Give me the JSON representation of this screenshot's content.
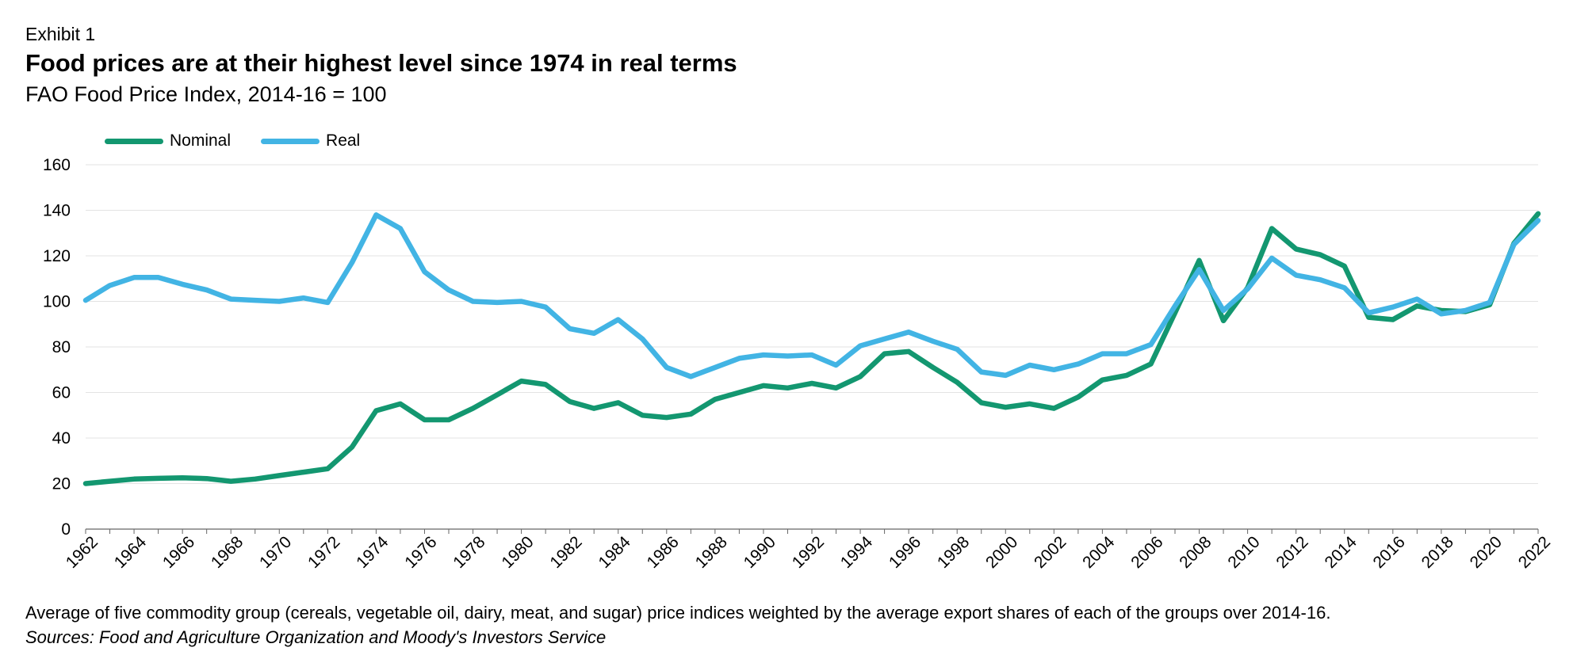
{
  "header": {
    "exhibit": "Exhibit 1",
    "title": "Food prices are at their highest level since 1974 in real terms",
    "subtitle": "FAO Food Price Index, 2014-16 = 100"
  },
  "footer": {
    "note": "Average of five commodity group (cereals, vegetable oil, dairy, meat, and sugar) price indices weighted by the average export shares of each of the groups over 2014-16.",
    "source": "Sources: Food and Agriculture Organization and Moody's Investors Service"
  },
  "chart_data": {
    "type": "line",
    "title": "Food prices are at their highest level since 1974 in real terms",
    "subtitle": "FAO Food Price Index, 2014-16 = 100",
    "xlabel": "",
    "ylabel": "",
    "ylim": [
      0,
      160
    ],
    "yticks": [
      0,
      20,
      40,
      60,
      80,
      100,
      120,
      140,
      160
    ],
    "xlim": [
      1962,
      2022
    ],
    "xticks": [
      "1962",
      "1964",
      "1966",
      "1968",
      "1970",
      "1972",
      "1974",
      "1976",
      "1978",
      "1980",
      "1982",
      "1984",
      "1986",
      "1988",
      "1990",
      "1992",
      "1994",
      "1996",
      "1998",
      "2000",
      "2002",
      "2004",
      "2006",
      "2008",
      "2010",
      "2012",
      "2014",
      "2016",
      "2018",
      "2020",
      "2022"
    ],
    "grid": "horizontal",
    "legend_position": "top-left",
    "x": [
      1962,
      1963,
      1964,
      1965,
      1966,
      1967,
      1968,
      1969,
      1970,
      1971,
      1972,
      1973,
      1974,
      1975,
      1976,
      1977,
      1978,
      1979,
      1980,
      1981,
      1982,
      1983,
      1984,
      1985,
      1986,
      1987,
      1988,
      1989,
      1990,
      1991,
      1992,
      1993,
      1994,
      1995,
      1996,
      1997,
      1998,
      1999,
      2000,
      2001,
      2002,
      2003,
      2004,
      2005,
      2006,
      2007,
      2008,
      2009,
      2010,
      2011,
      2012,
      2013,
      2014,
      2015,
      2016,
      2017,
      2018,
      2019,
      2020,
      2021,
      2022
    ],
    "series": [
      {
        "name": "Nominal",
        "color": "#139770",
        "values": [
          20,
          21,
          22,
          22.3,
          22.5,
          22.2,
          21,
          22,
          23.5,
          25,
          26.5,
          36,
          52,
          55,
          48,
          48,
          53,
          59,
          65,
          63.5,
          56,
          53,
          55.5,
          50,
          49,
          50.5,
          57,
          60,
          63,
          62,
          64,
          62,
          67,
          77,
          78,
          71,
          64.5,
          55.5,
          53.5,
          55,
          53,
          58,
          65.5,
          67.5,
          72.5,
          95,
          118,
          91.5,
          106,
          132,
          123,
          120.5,
          115.5,
          93,
          92,
          98,
          96,
          95.5,
          98.5,
          125.5,
          138.5
        ]
      },
      {
        "name": "Real",
        "color": "#42b4e4",
        "values": [
          100.5,
          107,
          110.5,
          110.5,
          107.5,
          105,
          101,
          100.5,
          100,
          101.5,
          99.5,
          117,
          138,
          132,
          113,
          105,
          100,
          99.5,
          100,
          97.5,
          88,
          86,
          92,
          83.5,
          71,
          67,
          71,
          75,
          76.5,
          76,
          76.5,
          72,
          80.5,
          83.5,
          86.5,
          82.5,
          79,
          69,
          67.5,
          72,
          70,
          72.5,
          77,
          77,
          81,
          98,
          114,
          96,
          105.5,
          119,
          111.5,
          109.5,
          106,
          95,
          97.5,
          101,
          94.5,
          96,
          99.5,
          125,
          135.5
        ]
      }
    ]
  }
}
